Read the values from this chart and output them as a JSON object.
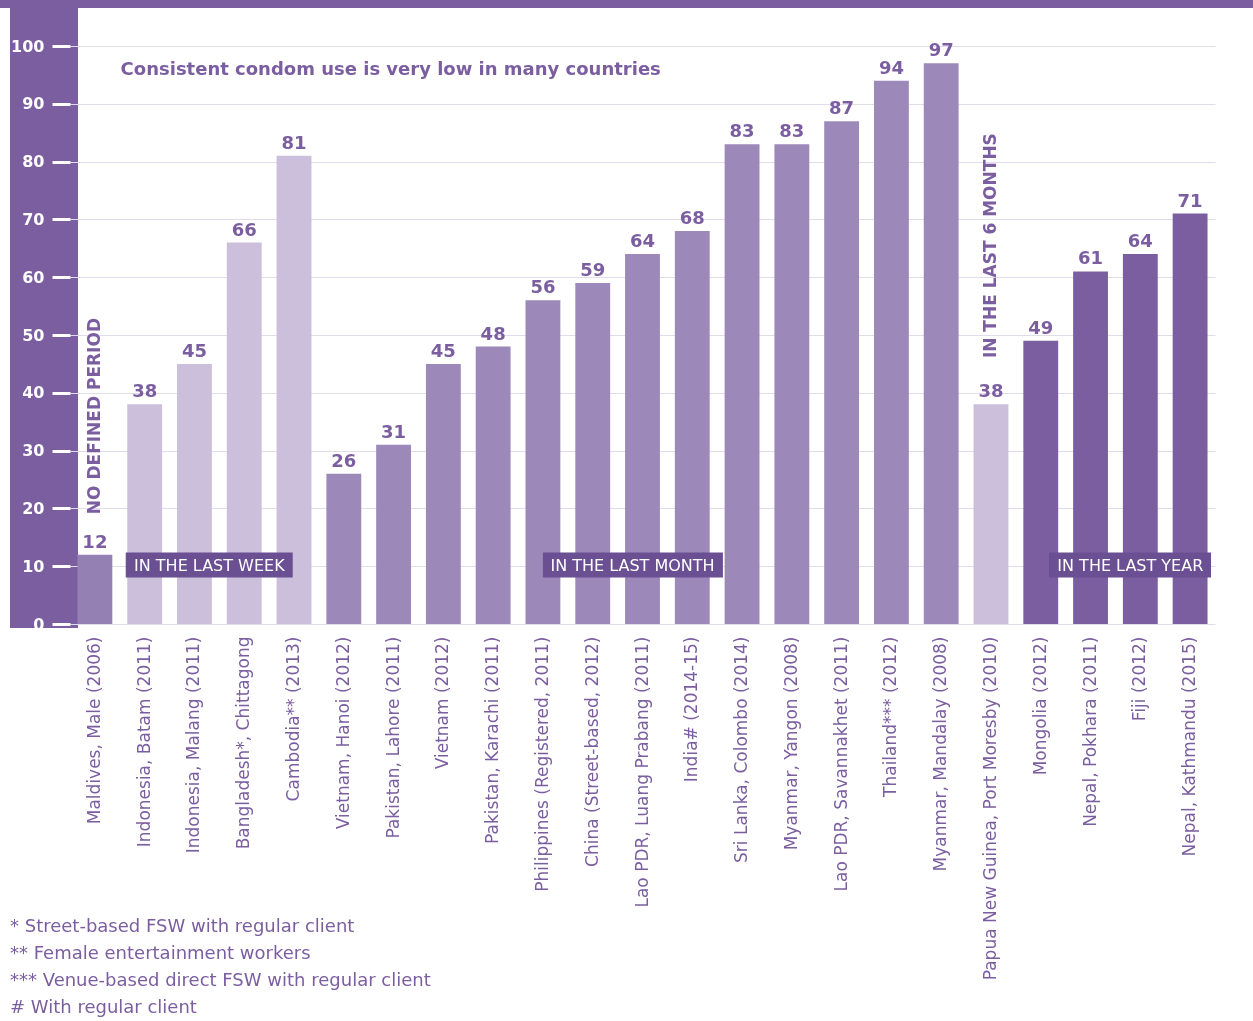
{
  "chart_data": {
    "type": "bar",
    "subtitle": "Consistent condom use is very low in many countries",
    "categories": [
      "Maldives, Male (2006)",
      "Indonesia, Batam (2011)",
      "Indonesia, Malang (2011)",
      "Bangladesh*, Chittagong",
      "Cambodia** (2013)",
      "Vietnam, Hanoi (2012)",
      "Pakistan, Lahore (2011)",
      "Vietnam (2012)",
      "Pakistan, Karachi (2011)",
      "Philippines (Registered, 2011)",
      "China (Street-based, 2012)",
      "Lao PDR, Luang Prabang (2011)",
      "India# (2014-15)",
      "Sri Lanka, Colombo (2014)",
      "Myanmar, Yangon (2008)",
      "Lao PDR, Savannakhet (2011)",
      "Thailand*** (2012)",
      "Myanmar, Mandalay (2008)",
      "Papua New Guinea, Port Moresby (2010)",
      "Mongolia (2012)",
      "Nepal, Pokhara (2011)",
      "Fiji (2012)",
      "Nepal, Kathmandu (2015)"
    ],
    "values": [
      12,
      38,
      45,
      66,
      81,
      26,
      31,
      45,
      48,
      56,
      59,
      64,
      68,
      83,
      83,
      87,
      94,
      97,
      38,
      49,
      61,
      64,
      71
    ],
    "colors": [
      "#9580b3",
      "#cbbfdb",
      "#cbbfdb",
      "#cbbfdb",
      "#cbbfdb",
      "#9c89ba",
      "#9c89ba",
      "#9c89ba",
      "#9c89ba",
      "#9c89ba",
      "#9c89ba",
      "#9c89ba",
      "#9c89ba",
      "#9c89ba",
      "#9c89ba",
      "#9c89ba",
      "#9c89ba",
      "#9c89ba",
      "#cbbfdb",
      "#7b5ea0",
      "#7b5ea0",
      "#7b5ea0",
      "#7b5ea0"
    ],
    "ylim": [
      0,
      100
    ],
    "yticks": [
      0,
      10,
      20,
      30,
      40,
      50,
      60,
      70,
      80,
      90,
      100
    ],
    "grid": "y",
    "data_labels": true,
    "annotations": [
      "NO DEFINED PERIOD",
      "IN THE LAST WEEK",
      "IN THE LAST MONTH",
      "IN THE LAST 6 MONTHS",
      "IN THE LAST YEAR",
      "*   Street-based FSW with regular client",
      "**   Female entertainment workers",
      "***   Venue-based direct FSW with regular client",
      "#   With regular client"
    ]
  }
}
